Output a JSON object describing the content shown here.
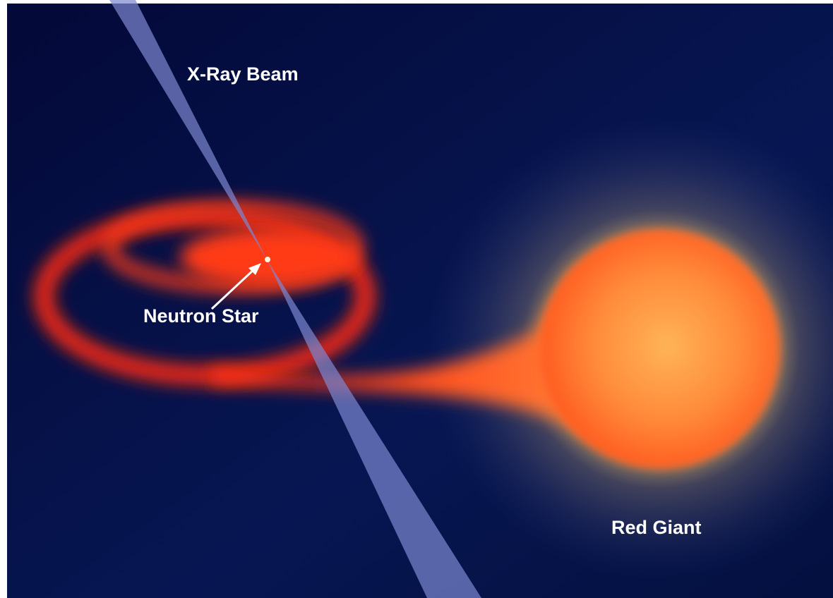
{
  "labels": {
    "x_ray_beam": "X-Ray Beam",
    "neutron_star": "Neutron Star",
    "red_giant": "Red Giant"
  }
}
